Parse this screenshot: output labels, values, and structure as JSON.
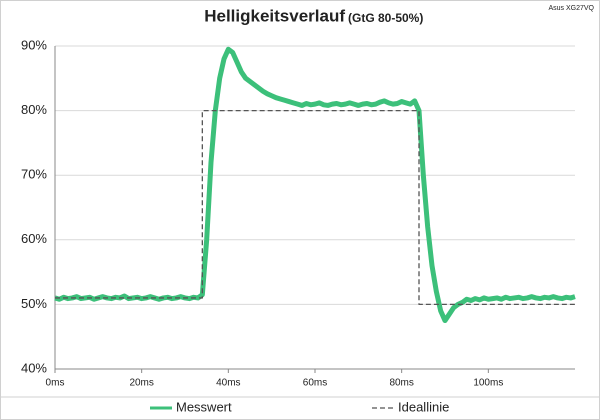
{
  "chart_data": {
    "type": "line",
    "title": "Helligkeitsverlauf",
    "subtitle": "(GtG 80-50%)",
    "annotations": [
      "Asus XG27VQ"
    ],
    "xlim": [
      0,
      120
    ],
    "ylim": [
      40,
      90
    ],
    "xticks": [
      {
        "value": 0,
        "label": "0ms"
      },
      {
        "value": 20,
        "label": "20ms"
      },
      {
        "value": 40,
        "label": "40ms"
      },
      {
        "value": 60,
        "label": "60ms"
      },
      {
        "value": 80,
        "label": "80ms"
      },
      {
        "value": 100,
        "label": "100ms"
      }
    ],
    "yticks": [
      {
        "value": 40,
        "label": "40%"
      },
      {
        "value": 50,
        "label": "50%"
      },
      {
        "value": 60,
        "label": "60%"
      },
      {
        "value": 70,
        "label": "70%"
      },
      {
        "value": 80,
        "label": "80%"
      },
      {
        "value": 90,
        "label": "90%"
      }
    ],
    "grid": true,
    "legend": "bottom",
    "series": [
      {
        "name": "Messwert",
        "color": "#3cc07a",
        "style": "solid",
        "x": [
          0,
          1,
          2,
          3,
          4,
          5,
          6,
          7,
          8,
          9,
          10,
          11,
          12,
          13,
          14,
          15,
          16,
          17,
          18,
          19,
          20,
          21,
          22,
          23,
          24,
          25,
          26,
          27,
          28,
          29,
          30,
          31,
          32,
          33,
          34,
          35,
          36,
          37,
          38,
          39,
          40,
          41,
          42,
          43,
          44,
          45,
          46,
          47,
          48,
          49,
          50,
          51,
          52,
          53,
          54,
          55,
          56,
          57,
          58,
          59,
          60,
          61,
          62,
          63,
          64,
          65,
          66,
          67,
          68,
          69,
          70,
          71,
          72,
          73,
          74,
          75,
          76,
          77,
          78,
          79,
          80,
          81,
          82,
          83,
          84,
          85,
          86,
          87,
          88,
          89,
          90,
          91,
          92,
          93,
          94,
          95,
          96,
          97,
          98,
          99,
          100,
          101,
          102,
          103,
          104,
          105,
          106,
          107,
          108,
          109,
          110,
          111,
          112,
          113,
          114,
          115,
          116,
          117,
          118,
          119,
          120
        ],
        "values": [
          51,
          50.8,
          51.1,
          50.9,
          51,
          51.2,
          50.9,
          51,
          51.1,
          50.8,
          51,
          51.2,
          51,
          50.9,
          51.1,
          51,
          51.3,
          50.9,
          51,
          51.1,
          50.9,
          51,
          51.2,
          51,
          50.8,
          51,
          51.1,
          50.9,
          51,
          51.2,
          51,
          50.9,
          51.1,
          51,
          51.5,
          60,
          72,
          80,
          85,
          88,
          89.5,
          89,
          87.5,
          86,
          85,
          84.5,
          84,
          83.5,
          83,
          82.6,
          82.3,
          82,
          81.8,
          81.6,
          81.4,
          81.2,
          81,
          80.8,
          81.1,
          80.9,
          81,
          81.2,
          80.9,
          80.8,
          81,
          81.1,
          80.9,
          81,
          81.2,
          81,
          80.8,
          81,
          81.1,
          80.9,
          81,
          81.3,
          81.5,
          81.2,
          81,
          81.1,
          81.4,
          81.2,
          81,
          81.5,
          80,
          70,
          62,
          56,
          52,
          49,
          47.5,
          48.5,
          49.5,
          50,
          50.3,
          50.8,
          50.6,
          50.9,
          50.7,
          51,
          50.8,
          50.9,
          51,
          50.8,
          51.1,
          50.9,
          51,
          51.1,
          50.9,
          51,
          51.2,
          51,
          50.9,
          51.1,
          51,
          51.2,
          51,
          50.9,
          51.1,
          51,
          51.2
        ]
      },
      {
        "name": "Ideallinie",
        "color": "#555555",
        "style": "dashed",
        "x": [
          0,
          34,
          34,
          84,
          84,
          120
        ],
        "values": [
          51,
          51,
          80,
          80,
          50,
          50
        ]
      }
    ]
  }
}
